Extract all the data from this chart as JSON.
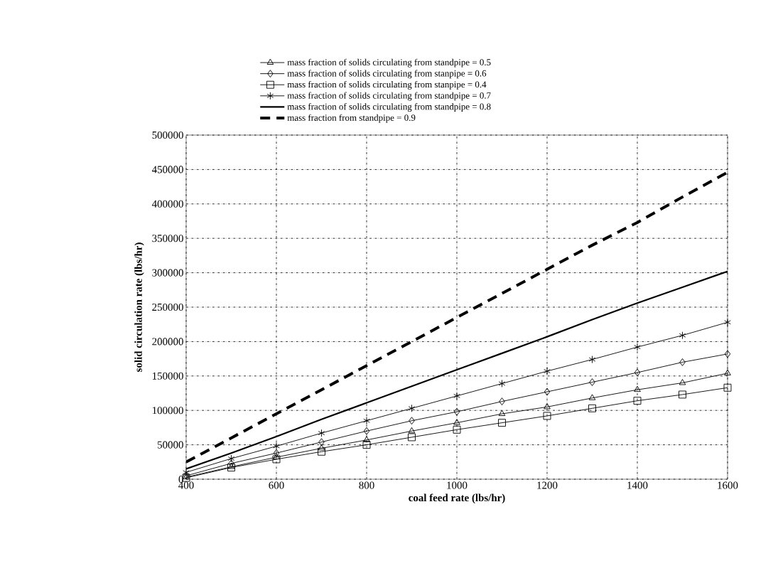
{
  "chart_data": {
    "type": "line",
    "xlabel": "coal feed rate (lbs/hr)",
    "ylabel": "solid circulation rate (lbs/hr)",
    "x": [
      400,
      500,
      600,
      700,
      800,
      900,
      1000,
      1100,
      1200,
      1300,
      1400,
      1500,
      1600
    ],
    "xlim": [
      400,
      1600
    ],
    "xticks": [
      400,
      600,
      800,
      1000,
      1200,
      1400,
      1600
    ],
    "ylim": [
      0,
      500000
    ],
    "yticks": [
      0,
      50000,
      100000,
      150000,
      200000,
      250000,
      300000,
      350000,
      400000,
      450000,
      500000
    ],
    "grid": true,
    "legend": "top",
    "series": [
      {
        "name": "mass fraction of solids circulating  from standpipe = 0.5",
        "color": "#000000",
        "marker": "triangle",
        "line_style": "solid",
        "values": [
          3000,
          18000,
          32000,
          45000,
          57000,
          70000,
          82000,
          95000,
          105000,
          118000,
          130000,
          140000,
          154000
        ]
      },
      {
        "name": "mass fraction of solids circulating from stanpipe = 0.6",
        "color": "#000000",
        "marker": "diamond",
        "line_style": "solid",
        "values": [
          5000,
          23000,
          38000,
          54000,
          70000,
          85000,
          98000,
          113000,
          127000,
          141000,
          155000,
          170000,
          182000
        ]
      },
      {
        "name": "mass fraction of solids circulating from stanpipe = 0.4",
        "color": "#000000",
        "marker": "square",
        "line_style": "solid",
        "values": [
          2000,
          17000,
          29000,
          40000,
          50000,
          61000,
          72000,
          82000,
          92000,
          103000,
          114000,
          123000,
          133000
        ]
      },
      {
        "name": "mass fraction of solids circulating from standpipe = 0.7",
        "color": "#000000",
        "marker": "cross",
        "line_style": "solid",
        "values": [
          10000,
          30000,
          48000,
          67000,
          85000,
          103000,
          121000,
          139000,
          157000,
          174000,
          192000,
          209000,
          228000
        ]
      },
      {
        "name": "mass fraction of solids circulating from standpipe = 0.8",
        "color": "#000000",
        "marker": "none",
        "line_style": "solid",
        "values": [
          15000,
          38000,
          62000,
          87000,
          111000,
          135000,
          159000,
          183000,
          207000,
          232000,
          256000,
          279000,
          302000
        ]
      },
      {
        "name": "mass fraction from standpipe = 0.9",
        "color": "#000000",
        "marker": "none",
        "line_style": "dashed",
        "values": [
          25000,
          60000,
          95000,
          130000,
          165000,
          200000,
          235000,
          270000,
          305000,
          340000,
          373000,
          410000,
          446000
        ]
      }
    ]
  }
}
